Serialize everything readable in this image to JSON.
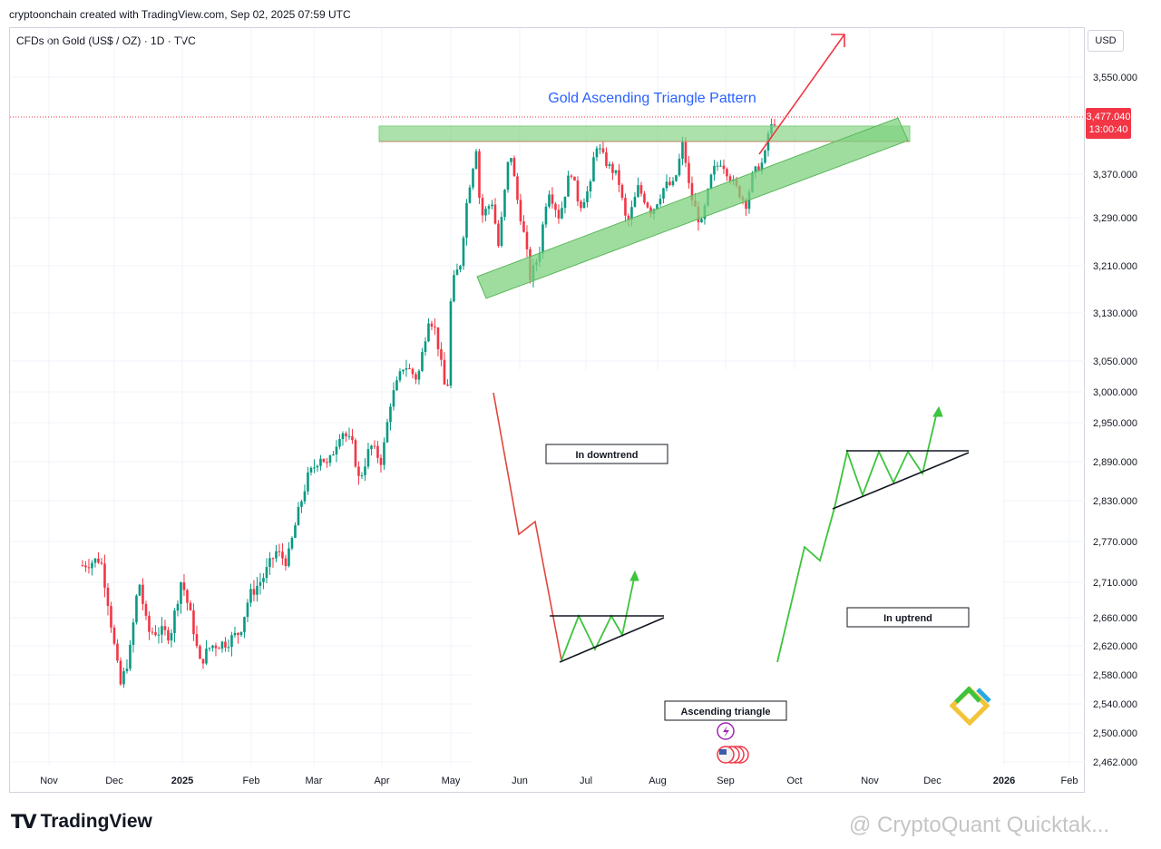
{
  "header": {
    "credit": "cryptoonchain created with TradingView.com, Sep 02, 2025 07:59 UTC",
    "symbol": "CFDs on Gold (US$ / OZ) · 1D · TVC",
    "currency": "USD"
  },
  "price_label": {
    "price": "3,477.040",
    "countdown": "13:00:40"
  },
  "footer": {
    "logo_mark": "TV",
    "logo_text": "TradingView",
    "watermark": "@ CryptoQuant Quicktak..."
  },
  "colors": {
    "up": "#089981",
    "down": "#f23645",
    "zone": "#7fd17f",
    "annotation_title": "#2962ff",
    "arrow": "#f23645"
  },
  "chart_data": {
    "type": "candlestick",
    "title": "",
    "ylim": [
      2462,
      3610
    ],
    "y_ticks": [
      "3,550.000",
      "3,370.000",
      "3,290.000",
      "3,210.000",
      "3,130.000",
      "3,050.000",
      "3,000.000",
      "2,950.000",
      "2,890.000",
      "2,830.000",
      "2,770.000",
      "2,710.000",
      "2,660.000",
      "2,620.000",
      "2,580.000",
      "2,540.000",
      "2,500.000",
      "2,462.000"
    ],
    "x_ticks": [
      "Nov",
      "Dec",
      "2025",
      "Feb",
      "Mar",
      "Apr",
      "May",
      "Jun",
      "Jul",
      "Aug",
      "Sep",
      "Oct",
      "Nov",
      "Dec",
      "2026",
      "Feb"
    ],
    "last_price": 3477.04,
    "series": [
      {
        "date": "2024-10-28",
        "close": 2735
      },
      {
        "date": "2024-11-01",
        "close": 2740
      },
      {
        "date": "2024-11-05",
        "close": 2745
      },
      {
        "date": "2024-11-08",
        "close": 2690
      },
      {
        "date": "2024-11-12",
        "close": 2600
      },
      {
        "date": "2024-11-14",
        "close": 2565
      },
      {
        "date": "2024-11-18",
        "close": 2610
      },
      {
        "date": "2024-11-22",
        "close": 2715
      },
      {
        "date": "2024-11-26",
        "close": 2640
      },
      {
        "date": "2024-12-02",
        "close": 2640
      },
      {
        "date": "2024-12-06",
        "close": 2635
      },
      {
        "date": "2024-12-11",
        "close": 2715
      },
      {
        "date": "2024-12-16",
        "close": 2650
      },
      {
        "date": "2024-12-19",
        "close": 2595
      },
      {
        "date": "2024-12-24",
        "close": 2620
      },
      {
        "date": "2024-12-31",
        "close": 2625
      },
      {
        "date": "2025-01-06",
        "close": 2640
      },
      {
        "date": "2025-01-10",
        "close": 2690
      },
      {
        "date": "2025-01-16",
        "close": 2715
      },
      {
        "date": "2025-01-22",
        "close": 2755
      },
      {
        "date": "2025-01-27",
        "close": 2740
      },
      {
        "date": "2025-01-31",
        "close": 2800
      },
      {
        "date": "2025-02-05",
        "close": 2865
      },
      {
        "date": "2025-02-11",
        "close": 2900
      },
      {
        "date": "2025-02-14",
        "close": 2882
      },
      {
        "date": "2025-02-20",
        "close": 2940
      },
      {
        "date": "2025-02-25",
        "close": 2915
      },
      {
        "date": "2025-02-28",
        "close": 2860
      },
      {
        "date": "2025-03-05",
        "close": 2915
      },
      {
        "date": "2025-03-10",
        "close": 2890
      },
      {
        "date": "2025-03-14",
        "close": 2985
      },
      {
        "date": "2025-03-20",
        "close": 3045
      },
      {
        "date": "2025-03-26",
        "close": 3020
      },
      {
        "date": "2025-03-31",
        "close": 3125
      },
      {
        "date": "2025-04-03",
        "close": 3100
      },
      {
        "date": "2025-04-08",
        "close": 2985
      },
      {
        "date": "2025-04-10",
        "close": 3175
      },
      {
        "date": "2025-04-14",
        "close": 3215
      },
      {
        "date": "2025-04-17",
        "close": 3325
      },
      {
        "date": "2025-04-21",
        "close": 3420
      },
      {
        "date": "2025-04-23",
        "close": 3290
      },
      {
        "date": "2025-04-28",
        "close": 3320
      },
      {
        "date": "2025-05-01",
        "close": 3240
      },
      {
        "date": "2025-05-06",
        "close": 3420
      },
      {
        "date": "2025-05-09",
        "close": 3330
      },
      {
        "date": "2025-05-13",
        "close": 3245
      },
      {
        "date": "2025-05-15",
        "close": 3190
      },
      {
        "date": "2025-05-19",
        "close": 3230
      },
      {
        "date": "2025-05-23",
        "close": 3345
      },
      {
        "date": "2025-05-28",
        "close": 3290
      },
      {
        "date": "2025-06-02",
        "close": 3380
      },
      {
        "date": "2025-06-06",
        "close": 3310
      },
      {
        "date": "2025-06-11",
        "close": 3350
      },
      {
        "date": "2025-06-13",
        "close": 3430
      },
      {
        "date": "2025-06-18",
        "close": 3390
      },
      {
        "date": "2025-06-23",
        "close": 3365
      },
      {
        "date": "2025-06-27",
        "close": 3275
      },
      {
        "date": "2025-07-02",
        "close": 3345
      },
      {
        "date": "2025-07-08",
        "close": 3300
      },
      {
        "date": "2025-07-14",
        "close": 3350
      },
      {
        "date": "2025-07-18",
        "close": 3350
      },
      {
        "date": "2025-07-22",
        "close": 3430
      },
      {
        "date": "2025-07-25",
        "close": 3335
      },
      {
        "date": "2025-07-30",
        "close": 3275
      },
      {
        "date": "2025-08-04",
        "close": 3375
      },
      {
        "date": "2025-08-08",
        "close": 3395
      },
      {
        "date": "2025-08-13",
        "close": 3355
      },
      {
        "date": "2025-08-19",
        "close": 3315
      },
      {
        "date": "2025-08-22",
        "close": 3370
      },
      {
        "date": "2025-08-27",
        "close": 3395
      },
      {
        "date": "2025-08-29",
        "close": 3450
      },
      {
        "date": "2025-09-02",
        "close": 3477
      }
    ],
    "annotations": {
      "title": "Gold Ascending Triangle Pattern",
      "downtrend_label": "In downtrend",
      "uptrend_label": "In uptrend",
      "triangle_label": "Ascending triangle"
    }
  }
}
